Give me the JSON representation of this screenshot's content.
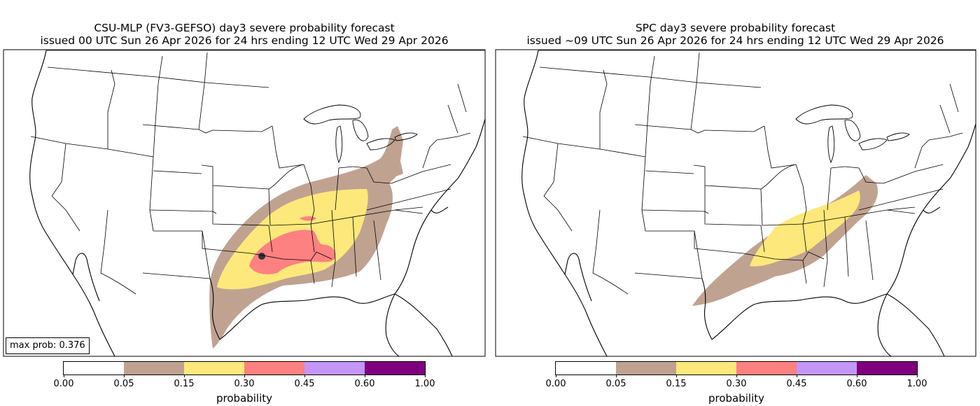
{
  "left_panel": {
    "title_line1": "CSU-MLP (FV3-GEFSO) day3 severe probability forecast",
    "title_line2": "issued 00 UTC Sun 26 Apr 2026 for 24 hrs ending 12 UTC Wed 29 Apr 2026",
    "max_prob_label": "max prob: 0.376"
  },
  "right_panel": {
    "title_line1": "SPC day3 severe probability forecast",
    "title_line2": "issued ~09 UTC Sun 26 Apr 2026 for 24 hrs ending 12 UTC Wed 29 Apr 2026"
  },
  "colorbar": {
    "label": "probability",
    "ticks": [
      "0.00",
      "0.05",
      "0.15",
      "0.30",
      "0.45",
      "0.60",
      "1.00"
    ],
    "colors": [
      "#ffffff",
      "#c0a291",
      "#fde87b",
      "#fd8181",
      "#c496f7",
      "#7f007f"
    ]
  },
  "legend_colors": {
    "p05": "#c0a291",
    "p15": "#fde87b",
    "p30": "#fd8181",
    "max_point": "#333333"
  }
}
